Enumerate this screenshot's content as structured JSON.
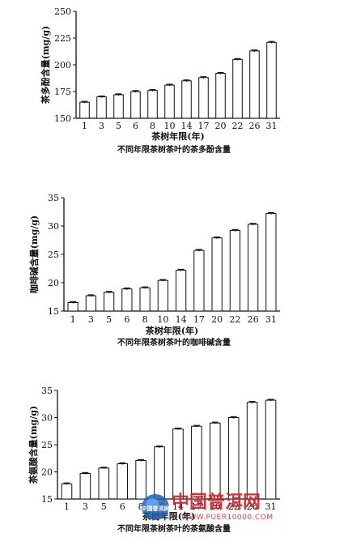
{
  "chart_data": [
    {
      "type": "bar",
      "categories": [
        "1",
        "3",
        "5",
        "6",
        "8",
        "10",
        "14",
        "17",
        "20",
        "22",
        "26",
        "31"
      ],
      "values": [
        165,
        170,
        172,
        175,
        176,
        181,
        185,
        188,
        192,
        205,
        213,
        221
      ],
      "ylim": [
        150,
        250
      ],
      "yticks": [
        150,
        175,
        200,
        225,
        250
      ],
      "ylabel": "茶多酚含量(mg/g)",
      "xlabel": "茶树年限(年)",
      "title": "不同年限茶树茶叶的茶多酚含量",
      "grid": false,
      "error_bars": true
    },
    {
      "type": "bar",
      "categories": [
        "1",
        "3",
        "5",
        "6",
        "8",
        "10",
        "14",
        "17",
        "20",
        "22",
        "26",
        "31"
      ],
      "values": [
        16.5,
        17.7,
        18.3,
        18.9,
        19.1,
        20.4,
        22.2,
        25.7,
        27.9,
        29.2,
        30.3,
        32.2
      ],
      "ylim": [
        15,
        35
      ],
      "yticks": [
        15,
        20,
        25,
        30,
        35
      ],
      "ylabel": "咖啡碱含量(mg/g)",
      "xlabel": "茶树年限(年)",
      "title": "不同年限茶树茶叶的咖啡碱含量",
      "grid": false,
      "error_bars": true
    },
    {
      "type": "bar",
      "categories": [
        "1",
        "3",
        "5",
        "6",
        "8",
        "10",
        "14",
        "17",
        "20",
        "22",
        "26",
        "31"
      ],
      "values": [
        17.8,
        19.7,
        20.7,
        21.5,
        22.1,
        24.6,
        27.9,
        28.4,
        29.0,
        30.0,
        32.8,
        33.2
      ],
      "ylim": [
        15,
        35
      ],
      "yticks": [
        15,
        20,
        25,
        30,
        35
      ],
      "ylabel": "茶氨酸含量(mg/g)",
      "xlabel": "茶树年限(年)",
      "title": "不同年限茶树茶叶的茶氨酸含量",
      "grid": false,
      "error_bars": true
    }
  ],
  "watermark": {
    "name": "中国普洱网",
    "url": "WWW.PUER10000.COM",
    "badge": "中国普洱网",
    "colors": {
      "primary": "#d0202a",
      "secondary": "#2060b0"
    }
  }
}
